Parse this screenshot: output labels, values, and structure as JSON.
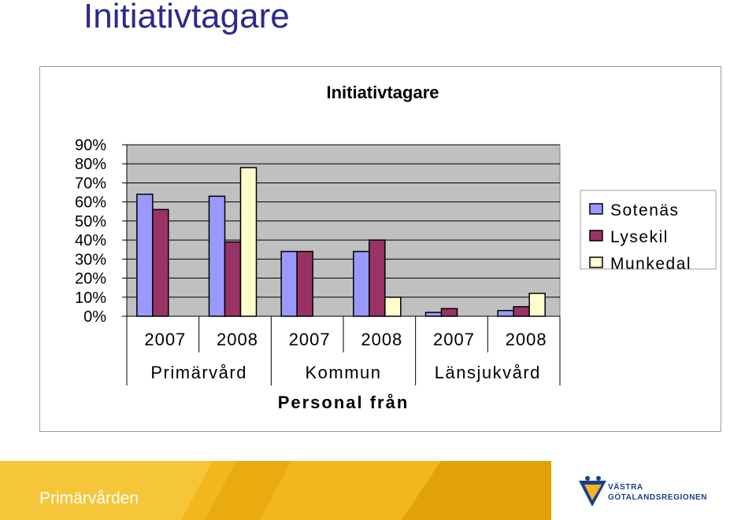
{
  "slide": {
    "title": "Initiativtagare",
    "footer_label": "Primärvården",
    "logo_line1": "VÄSTRA",
    "logo_line2": "GÖTALANDSREGIONEN"
  },
  "colors": {
    "title_text": "#2b2a8c",
    "plot_background": "#c0c0c0",
    "footer_band": "#f2b61f",
    "footer_accent": "#d9a106",
    "logo_blue": "#1a3e8c"
  },
  "chart_data": {
    "type": "bar",
    "title": "Initiativtagare",
    "xlabel": "Personal från",
    "ylabel": "",
    "ylim": [
      0,
      0.9
    ],
    "yticks": [
      "0%",
      "10%",
      "20%",
      "30%",
      "40%",
      "50%",
      "60%",
      "70%",
      "80%",
      "90%"
    ],
    "groups": [
      "Primärvård",
      "Kommun",
      "Länsjukvård"
    ],
    "categories": [
      "2007",
      "2008",
      "2007",
      "2008",
      "2007",
      "2008"
    ],
    "grid": true,
    "legend_position": "right",
    "series": [
      {
        "name": "Sotenäs",
        "color": "#9999ff",
        "values": [
          0.64,
          0.63,
          0.34,
          0.34,
          0.02,
          0.03
        ]
      },
      {
        "name": "Lysekil",
        "color": "#993366",
        "values": [
          0.56,
          0.39,
          0.34,
          0.4,
          0.04,
          0.05
        ]
      },
      {
        "name": "Munkedal",
        "color": "#ffffcc",
        "values": [
          0.0,
          0.78,
          0.0,
          0.1,
          0.0,
          0.12
        ]
      }
    ]
  }
}
